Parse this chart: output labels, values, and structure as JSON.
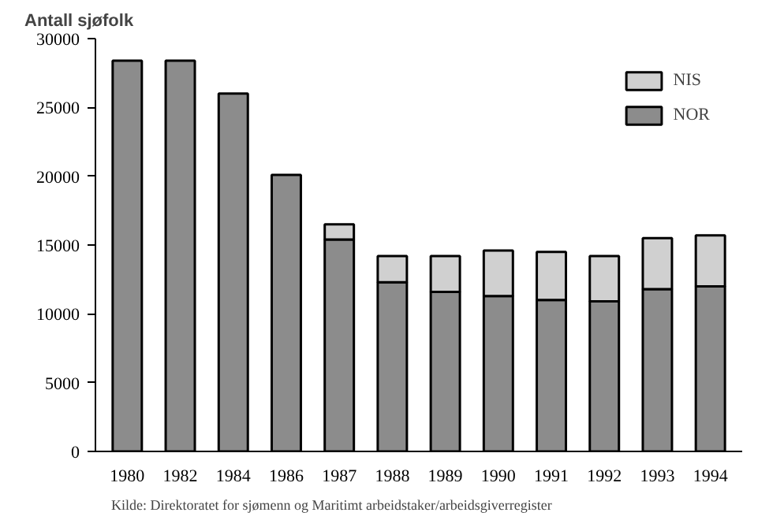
{
  "chart_data": {
    "type": "bar",
    "stacked": true,
    "ylabel": "Antall sjøfolk",
    "categories": [
      "1980",
      "1982",
      "1984",
      "1986",
      "1987",
      "1988",
      "1989",
      "1990",
      "1991",
      "1992",
      "1993",
      "1994"
    ],
    "series": [
      {
        "name": "NOR",
        "color": "#8c8c8c",
        "values": [
          28400,
          28400,
          26000,
          20100,
          15400,
          12300,
          11600,
          11300,
          11000,
          10900,
          11800,
          12000
        ]
      },
      {
        "name": "NIS",
        "color": "#d0d0d0",
        "values": [
          null,
          null,
          null,
          null,
          1100,
          1900,
          2600,
          3300,
          3500,
          3300,
          3700,
          3700
        ]
      }
    ],
    "ylim": [
      0,
      30000
    ],
    "yticks": [
      0,
      5000,
      10000,
      15000,
      20000,
      25000,
      30000
    ],
    "legend": "top right",
    "grid": false,
    "annotations": [
      "Kilde: Direktoratet for sjømenn og Maritimt arbeidstaker/arbeidsgiverregister"
    ]
  }
}
